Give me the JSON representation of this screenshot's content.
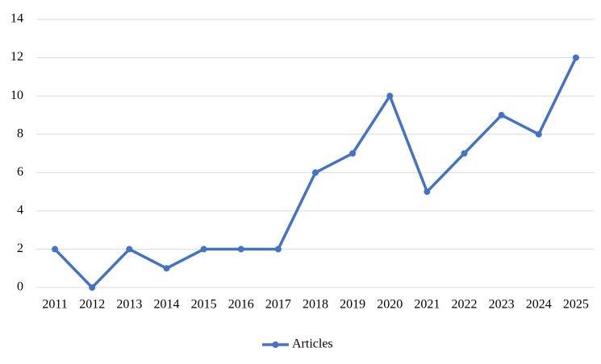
{
  "chart_data": {
    "type": "line",
    "categories": [
      "2011",
      "2012",
      "2013",
      "2014",
      "2015",
      "2016",
      "2017",
      "2018",
      "2019",
      "2020",
      "2021",
      "2022",
      "2023",
      "2024",
      "2025"
    ],
    "series": [
      {
        "name": "Articles",
        "color": "#4472c4",
        "values": [
          2,
          0,
          2,
          1,
          2,
          2,
          2,
          6,
          7,
          10,
          5,
          7,
          9,
          8,
          12
        ]
      }
    ],
    "ylim": [
      0,
      14
    ],
    "yticks": [
      0,
      2,
      4,
      6,
      8,
      10,
      12,
      14
    ],
    "grid": true,
    "legend": "bottom"
  }
}
